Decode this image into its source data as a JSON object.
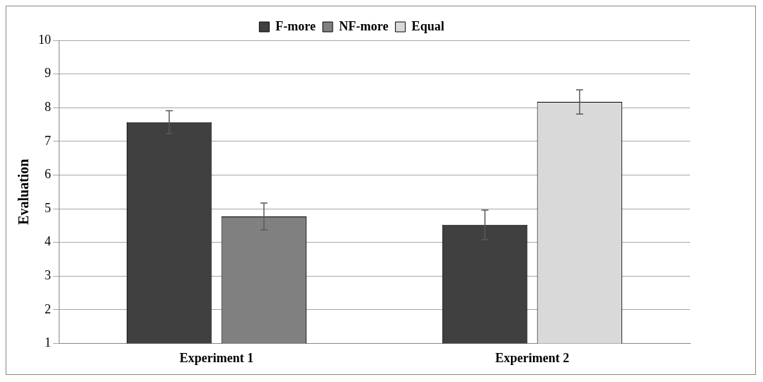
{
  "chart_data": {
    "type": "bar",
    "ylabel": "Evaluation",
    "categories": [
      "Experiment 1",
      "Experiment 2"
    ],
    "series": [
      {
        "name": "F-more",
        "color": "#404040",
        "values": [
          7.57,
          4.52
        ],
        "errors": [
          0.34,
          0.44
        ]
      },
      {
        "name": "NF-more",
        "color": "#808080",
        "values": [
          4.77,
          null
        ],
        "errors": [
          0.4,
          null
        ]
      },
      {
        "name": "Equal",
        "color": "#d9d9d9",
        "values": [
          null,
          8.17
        ],
        "errors": [
          null,
          0.36
        ]
      }
    ],
    "ylim": [
      1,
      10
    ],
    "yticks": [
      1,
      2,
      3,
      4,
      5,
      6,
      7,
      8,
      9,
      10
    ],
    "grid": "y",
    "legend": "top"
  }
}
